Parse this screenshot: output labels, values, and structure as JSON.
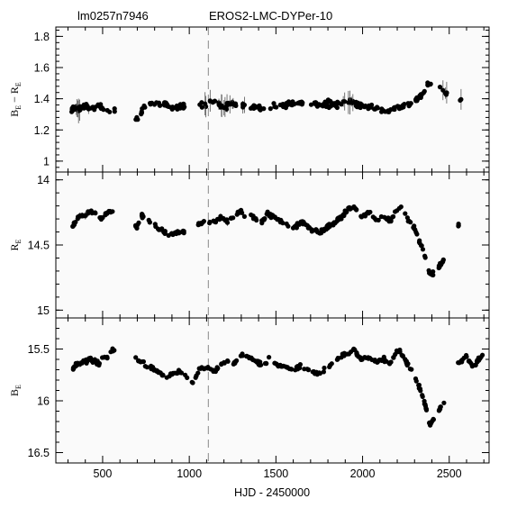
{
  "header": {
    "left_title": "lm0257n7946",
    "right_title": "EROS2-LMC-DYPer-10"
  },
  "chart_data": [
    {
      "type": "scatter",
      "panel": "color",
      "ylabel": "B_E − R_E",
      "ylabel_main": "B",
      "ylabel_sub1": "E",
      "ylabel_mid": " − R",
      "ylabel_sub2": "E",
      "xlim": [
        230,
        2730
      ],
      "ylim": [
        0.93,
        1.86
      ],
      "y_inverted": false,
      "yticks": [
        1,
        1.2,
        1.4,
        1.6,
        1.8
      ],
      "ytick_labels": [
        "1",
        "1.2",
        "1.4",
        "1.6",
        "1.8"
      ],
      "anchors": [
        [
          320,
          1.33
        ],
        [
          360,
          1.34
        ],
        [
          390,
          1.36
        ],
        [
          420,
          1.35
        ],
        [
          450,
          1.33
        ],
        [
          480,
          1.36
        ],
        [
          520,
          1.32
        ],
        [
          560,
          1.33
        ],
        [
          700,
          1.27
        ],
        [
          740,
          1.35
        ],
        [
          780,
          1.37
        ],
        [
          820,
          1.36
        ],
        [
          860,
          1.37
        ],
        [
          900,
          1.34
        ],
        [
          960,
          1.35
        ],
        [
          1080,
          1.36
        ],
        [
          1110,
          1.38
        ],
        [
          1150,
          1.38
        ],
        [
          1200,
          1.35
        ],
        [
          1250,
          1.37
        ],
        [
          1300,
          1.36
        ],
        [
          1360,
          1.35
        ],
        [
          1400,
          1.34
        ],
        [
          1450,
          1.35
        ],
        [
          1500,
          1.36
        ],
        [
          1560,
          1.36
        ],
        [
          1620,
          1.37
        ],
        [
          1680,
          1.37
        ],
        [
          1720,
          1.37
        ],
        [
          1760,
          1.35
        ],
        [
          1800,
          1.37
        ],
        [
          1850,
          1.36
        ],
        [
          1900,
          1.38
        ],
        [
          1950,
          1.37
        ],
        [
          2000,
          1.35
        ],
        [
          2050,
          1.35
        ],
        [
          2100,
          1.33
        ],
        [
          2150,
          1.32
        ],
        [
          2200,
          1.34
        ],
        [
          2250,
          1.36
        ],
        [
          2300,
          1.38
        ],
        [
          2340,
          1.42
        ],
        [
          2370,
          1.48
        ],
        [
          2390,
          1.49
        ],
        [
          2460,
          1.47
        ],
        [
          2480,
          1.44
        ],
        [
          2570,
          1.39
        ]
      ],
      "gaps": [
        [
          570,
          690
        ],
        [
          710,
          720
        ],
        [
          975,
          1060
        ],
        [
          1320,
          1355
        ],
        [
          1660,
          1700
        ],
        [
          2400,
          2445
        ],
        [
          2490,
          2555
        ]
      ],
      "scatter": 0.022,
      "point_count": 310,
      "errorbar_region": [
        [
          330,
          480
        ],
        [
          1080,
          1330
        ],
        [
          1850,
          1950
        ],
        [
          2450,
          2580
        ]
      ]
    },
    {
      "type": "scatter",
      "panel": "R",
      "ylabel": "R_E",
      "ylabel_main": "R",
      "ylabel_sub1": "E",
      "xlim": [
        230,
        2730
      ],
      "ylim": [
        13.94,
        15.06
      ],
      "y_inverted": true,
      "yticks": [
        14,
        14.5,
        15
      ],
      "ytick_labels": [
        "14",
        "14.5",
        "15"
      ],
      "anchors": [
        [
          320,
          14.38
        ],
        [
          360,
          14.28
        ],
        [
          400,
          14.27
        ],
        [
          430,
          14.24
        ],
        [
          460,
          14.26
        ],
        [
          480,
          14.3
        ],
        [
          500,
          14.29
        ],
        [
          520,
          14.26
        ],
        [
          560,
          14.24
        ],
        [
          700,
          14.36
        ],
        [
          720,
          14.27
        ],
        [
          760,
          14.31
        ],
        [
          800,
          14.35
        ],
        [
          840,
          14.38
        ],
        [
          860,
          14.41
        ],
        [
          880,
          14.43
        ],
        [
          900,
          14.41
        ],
        [
          950,
          14.41
        ],
        [
          1060,
          14.34
        ],
        [
          1080,
          14.32
        ],
        [
          1100,
          14.33
        ],
        [
          1150,
          14.32
        ],
        [
          1180,
          14.29
        ],
        [
          1220,
          14.32
        ],
        [
          1250,
          14.29
        ],
        [
          1280,
          14.25
        ],
        [
          1300,
          14.24
        ],
        [
          1320,
          14.3
        ],
        [
          1360,
          14.27
        ],
        [
          1390,
          14.31
        ],
        [
          1420,
          14.33
        ],
        [
          1450,
          14.25
        ],
        [
          1480,
          14.28
        ],
        [
          1520,
          14.31
        ],
        [
          1560,
          14.34
        ],
        [
          1600,
          14.37
        ],
        [
          1650,
          14.32
        ],
        [
          1700,
          14.38
        ],
        [
          1760,
          14.4
        ],
        [
          1800,
          14.36
        ],
        [
          1840,
          14.33
        ],
        [
          1880,
          14.28
        ],
        [
          1920,
          14.22
        ],
        [
          1950,
          14.2
        ],
        [
          1980,
          14.27
        ],
        [
          2000,
          14.28
        ],
        [
          2040,
          14.25
        ],
        [
          2080,
          14.32
        ],
        [
          2120,
          14.28
        ],
        [
          2160,
          14.32
        ],
        [
          2200,
          14.22
        ],
        [
          2220,
          14.21
        ],
        [
          2260,
          14.3
        ],
        [
          2290,
          14.35
        ],
        [
          2310,
          14.4
        ],
        [
          2330,
          14.47
        ],
        [
          2350,
          14.55
        ],
        [
          2370,
          14.63
        ],
        [
          2385,
          14.72
        ],
        [
          2400,
          14.73
        ],
        [
          2450,
          14.65
        ],
        [
          2470,
          14.61
        ],
        [
          2560,
          14.33
        ]
      ],
      "gaps": [
        [
          570,
          690
        ],
        [
          975,
          1045
        ],
        [
          1330,
          1355
        ],
        [
          2410,
          2440
        ],
        [
          2480,
          2550
        ],
        [
          2580,
          2730
        ]
      ],
      "scatter": 0.018,
      "point_count": 300,
      "errorbar_region": [
        [
          350,
          460
        ],
        [
          1180,
          1260
        ]
      ]
    },
    {
      "type": "scatter",
      "panel": "B",
      "ylabel": "B_E",
      "ylabel_main": "B",
      "ylabel_sub1": "E",
      "xlim": [
        230,
        2730
      ],
      "ylim": [
        15.2,
        16.6
      ],
      "y_inverted": true,
      "yticks": [
        15.5,
        16,
        16.5
      ],
      "ytick_labels": [
        "15.5",
        "16",
        "16.5"
      ],
      "anchors": [
        [
          320,
          15.71
        ],
        [
          360,
          15.64
        ],
        [
          400,
          15.62
        ],
        [
          430,
          15.6
        ],
        [
          460,
          15.62
        ],
        [
          480,
          15.65
        ],
        [
          500,
          15.58
        ],
        [
          520,
          15.6
        ],
        [
          560,
          15.51
        ],
        [
          700,
          15.6
        ],
        [
          720,
          15.62
        ],
        [
          760,
          15.67
        ],
        [
          800,
          15.7
        ],
        [
          840,
          15.74
        ],
        [
          860,
          15.76
        ],
        [
          880,
          15.78
        ],
        [
          900,
          15.74
        ],
        [
          950,
          15.72
        ],
        [
          1020,
          15.83
        ],
        [
          1060,
          15.69
        ],
        [
          1080,
          15.68
        ],
        [
          1120,
          15.69
        ],
        [
          1150,
          15.72
        ],
        [
          1180,
          15.64
        ],
        [
          1220,
          15.62
        ],
        [
          1250,
          15.66
        ],
        [
          1280,
          15.58
        ],
        [
          1300,
          15.55
        ],
        [
          1330,
          15.58
        ],
        [
          1380,
          15.6
        ],
        [
          1400,
          15.64
        ],
        [
          1430,
          15.65
        ],
        [
          1460,
          15.58
        ],
        [
          1480,
          15.62
        ],
        [
          1520,
          15.66
        ],
        [
          1560,
          15.68
        ],
        [
          1600,
          15.7
        ],
        [
          1650,
          15.66
        ],
        [
          1700,
          15.72
        ],
        [
          1760,
          15.74
        ],
        [
          1800,
          15.68
        ],
        [
          1840,
          15.62
        ],
        [
          1880,
          15.56
        ],
        [
          1920,
          15.54
        ],
        [
          1950,
          15.51
        ],
        [
          1980,
          15.58
        ],
        [
          2000,
          15.6
        ],
        [
          2040,
          15.58
        ],
        [
          2080,
          15.62
        ],
        [
          2120,
          15.6
        ],
        [
          2160,
          15.64
        ],
        [
          2200,
          15.52
        ],
        [
          2220,
          15.53
        ],
        [
          2260,
          15.65
        ],
        [
          2290,
          15.72
        ],
        [
          2310,
          15.8
        ],
        [
          2330,
          15.88
        ],
        [
          2350,
          15.97
        ],
        [
          2370,
          16.1
        ],
        [
          2380,
          16.2
        ],
        [
          2390,
          16.24
        ],
        [
          2450,
          16.07
        ],
        [
          2470,
          16.02
        ],
        [
          2540,
          15.64
        ],
        [
          2570,
          15.62
        ],
        [
          2600,
          15.56
        ],
        [
          2640,
          15.7
        ],
        [
          2660,
          15.62
        ],
        [
          2700,
          15.56
        ]
      ],
      "gaps": [
        [
          570,
          690
        ],
        [
          2410,
          2440
        ],
        [
          2480,
          2530
        ]
      ],
      "scatter": 0.022,
      "point_count": 330,
      "errorbar_region": [
        [
          350,
          470
        ]
      ]
    }
  ],
  "x_axis": {
    "label": "HJD - 2450000",
    "ticks": [
      500,
      1000,
      1500,
      2000,
      2500
    ],
    "tick_labels": [
      "500",
      "1000",
      "1500",
      "2000",
      "2500"
    ]
  },
  "vertical_marker_x": 1110
}
